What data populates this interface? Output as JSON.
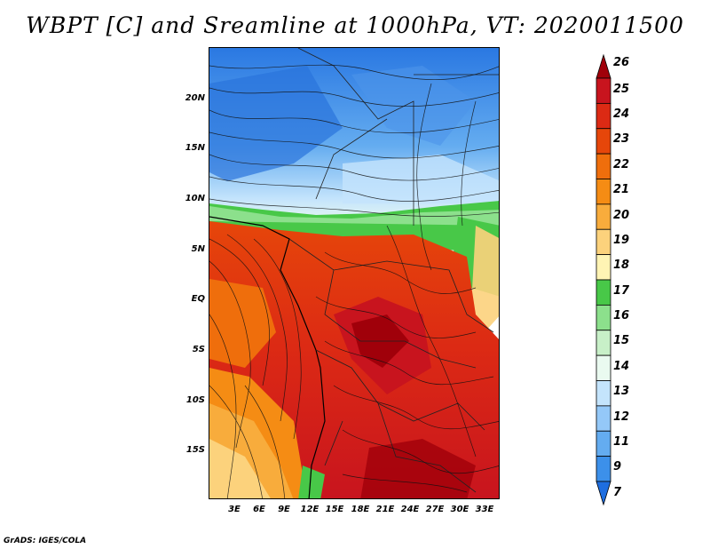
{
  "title": "WBPT [C] and Sreamline at 1000hPa, VT: 2020011500",
  "lat_labels": [
    "20N",
    "15N",
    "10N",
    "5N",
    "EQ",
    "5S",
    "10S",
    "15S"
  ],
  "lon_labels": [
    "3E",
    "6E",
    "9E",
    "12E",
    "15E",
    "18E",
    "21E",
    "24E",
    "27E",
    "30E",
    "33E"
  ],
  "colorbar": {
    "levels": [
      "26",
      "25",
      "24",
      "23",
      "22",
      "21",
      "20",
      "19",
      "18",
      "17",
      "16",
      "15",
      "14",
      "13",
      "12",
      "11",
      "9",
      "7"
    ],
    "colors": [
      "#a0000a",
      "#c8141e",
      "#dc2a14",
      "#e6460a",
      "#ef6e0c",
      "#f58c14",
      "#f8ac3c",
      "#fcd27c",
      "#fff4b4",
      "#48c848",
      "#8ce08c",
      "#c8f0c8",
      "#eafaf0",
      "#c4e4fc",
      "#94c8f8",
      "#64acf0",
      "#3c90ea",
      "#1e6ee0"
    ]
  },
  "credit": "GrADS: IGES/COLA"
}
